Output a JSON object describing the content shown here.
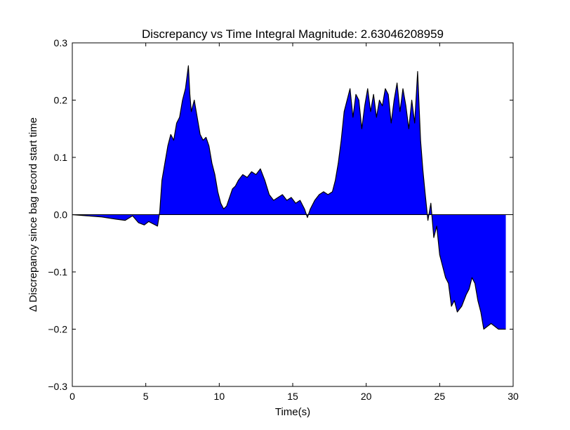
{
  "chart_data": {
    "type": "area",
    "title": "Discrepancy vs Time Integral Magnitude: 2.63046208959",
    "xlabel": "Time(s)",
    "ylabel": "Δ Discrepancy since bag record start time",
    "xlim": [
      0,
      30
    ],
    "ylim": [
      -0.3,
      0.3
    ],
    "xticks": [
      "0",
      "5",
      "10",
      "15",
      "20",
      "25",
      "30"
    ],
    "yticks": [
      "−0.3",
      "−0.2",
      "−0.1",
      "0.0",
      "0.1",
      "0.2",
      "0.3"
    ],
    "grid": false,
    "legend": "none",
    "series": [
      {
        "fill_color": "#0000ff",
        "line_color": "#000000",
        "x": [
          0,
          1,
          2,
          3,
          3.6,
          4.1,
          4.5,
          4.9,
          5.2,
          5.5,
          5.8,
          5.95,
          6.1,
          6.3,
          6.5,
          6.7,
          6.9,
          7.1,
          7.3,
          7.5,
          7.7,
          7.9,
          8.0,
          8.1,
          8.3,
          8.5,
          8.7,
          8.9,
          9.1,
          9.3,
          9.5,
          9.7,
          9.9,
          10.1,
          10.3,
          10.5,
          10.7,
          10.9,
          11.1,
          11.3,
          11.6,
          11.9,
          12.2,
          12.5,
          12.8,
          13.1,
          13.4,
          13.7,
          14.0,
          14.3,
          14.6,
          14.9,
          15.2,
          15.5,
          15.8,
          16.0,
          16.2,
          16.5,
          16.8,
          17.1,
          17.4,
          17.7,
          17.9,
          18.1,
          18.3,
          18.5,
          18.7,
          18.9,
          19.1,
          19.3,
          19.5,
          19.7,
          19.9,
          20.1,
          20.3,
          20.5,
          20.7,
          20.9,
          21.1,
          21.3,
          21.5,
          21.7,
          21.9,
          22.1,
          22.3,
          22.5,
          22.7,
          22.9,
          23.1,
          23.3,
          23.5,
          23.7,
          23.85,
          24.0,
          24.2,
          24.4,
          24.6,
          24.8,
          25.0,
          25.2,
          25.4,
          25.6,
          25.8,
          26.0,
          26.2,
          26.5,
          26.8,
          27.0,
          27.2,
          27.4,
          27.6,
          27.8,
          28.0,
          28.5,
          29.0,
          29.5
        ],
        "values": [
          0.0,
          -0.002,
          -0.004,
          -0.008,
          -0.01,
          -0.002,
          -0.014,
          -0.018,
          -0.012,
          -0.016,
          -0.02,
          0.005,
          0.06,
          0.09,
          0.12,
          0.14,
          0.13,
          0.16,
          0.17,
          0.2,
          0.22,
          0.26,
          0.21,
          0.18,
          0.2,
          0.17,
          0.14,
          0.13,
          0.135,
          0.12,
          0.09,
          0.07,
          0.04,
          0.02,
          0.01,
          0.015,
          0.03,
          0.045,
          0.05,
          0.06,
          0.07,
          0.065,
          0.075,
          0.07,
          0.08,
          0.06,
          0.035,
          0.025,
          0.03,
          0.035,
          0.025,
          0.03,
          0.02,
          0.025,
          0.01,
          -0.005,
          0.01,
          0.025,
          0.035,
          0.04,
          0.035,
          0.04,
          0.06,
          0.09,
          0.13,
          0.18,
          0.2,
          0.22,
          0.17,
          0.21,
          0.2,
          0.15,
          0.19,
          0.22,
          0.18,
          0.21,
          0.17,
          0.2,
          0.19,
          0.22,
          0.21,
          0.16,
          0.2,
          0.23,
          0.18,
          0.22,
          0.19,
          0.15,
          0.2,
          0.16,
          0.25,
          0.13,
          0.08,
          0.04,
          -0.01,
          0.02,
          -0.04,
          -0.02,
          -0.07,
          -0.09,
          -0.11,
          -0.12,
          -0.16,
          -0.15,
          -0.17,
          -0.16,
          -0.14,
          -0.13,
          -0.11,
          -0.12,
          -0.15,
          -0.17,
          -0.2,
          -0.19,
          -0.2,
          -0.2
        ]
      }
    ]
  }
}
